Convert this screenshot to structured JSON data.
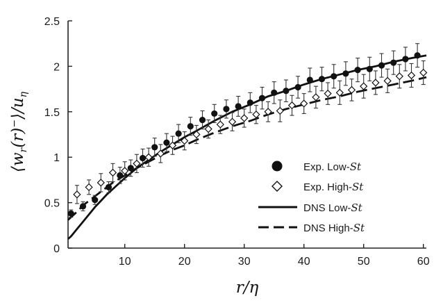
{
  "chart_data": {
    "type": "scatter",
    "xlabel": "r/η",
    "ylabel": "⟨w_r(r)⁻⟩/u_η",
    "xlim": [
      0.5,
      60.5
    ],
    "ylim": [
      0,
      2.5
    ],
    "x_ticks": [
      "10",
      "20",
      "30",
      "40",
      "50",
      "60"
    ],
    "y_ticks": [
      "0",
      "0.5",
      "1",
      "1.5",
      "2",
      "2.5"
    ],
    "grid": false,
    "legend_position": "bottom-right",
    "legend": {
      "exp_low_prefix": "Exp. Low-",
      "exp_high_prefix": "Exp. High-",
      "dns_low_prefix": "DNS Low-",
      "dns_high_prefix": "DNS High-",
      "st": "St"
    },
    "series": [
      {
        "name": "Exp. Low-St",
        "marker": "filled-circle",
        "x": [
          1,
          3,
          5,
          7.3,
          9.2,
          11,
          13,
          15,
          17,
          19,
          21,
          23,
          25,
          27,
          29,
          31,
          33,
          35,
          37,
          39,
          41,
          43,
          45,
          47,
          49,
          51,
          53,
          55,
          57,
          59
        ],
        "y": [
          0.38,
          0.46,
          0.53,
          0.67,
          0.8,
          0.88,
          0.99,
          1.11,
          1.16,
          1.26,
          1.34,
          1.41,
          1.48,
          1.53,
          1.56,
          1.6,
          1.65,
          1.71,
          1.73,
          1.77,
          1.85,
          1.86,
          1.89,
          1.92,
          1.96,
          1.97,
          2.01,
          2.04,
          2.08,
          2.12
        ],
        "err": [
          0.04,
          0.05,
          0.05,
          0.06,
          0.09,
          0.09,
          0.1,
          0.1,
          0.1,
          0.1,
          0.1,
          0.1,
          0.1,
          0.1,
          0.11,
          0.11,
          0.12,
          0.12,
          0.12,
          0.12,
          0.13,
          0.13,
          0.13,
          0.13,
          0.13,
          0.13,
          0.13,
          0.13,
          0.13,
          0.13
        ]
      },
      {
        "name": "Exp. High-St",
        "marker": "open-diamond",
        "x": [
          2,
          4,
          6,
          8,
          10,
          12,
          14,
          16,
          18,
          20,
          22,
          24,
          26,
          28,
          30,
          32,
          34,
          36,
          38,
          40,
          42,
          44,
          46,
          48,
          50,
          52,
          54,
          56,
          58,
          60
        ],
        "y": [
          0.59,
          0.67,
          0.72,
          0.83,
          0.85,
          0.93,
          1.0,
          1.04,
          1.13,
          1.18,
          1.25,
          1.31,
          1.36,
          1.39,
          1.43,
          1.47,
          1.5,
          1.51,
          1.57,
          1.59,
          1.66,
          1.7,
          1.71,
          1.74,
          1.78,
          1.82,
          1.84,
          1.89,
          1.9,
          1.93
        ],
        "err": [
          0.1,
          0.08,
          0.1,
          0.1,
          0.1,
          0.1,
          0.1,
          0.1,
          0.1,
          0.1,
          0.1,
          0.1,
          0.1,
          0.1,
          0.1,
          0.1,
          0.11,
          0.12,
          0.11,
          0.11,
          0.12,
          0.12,
          0.13,
          0.12,
          0.13,
          0.13,
          0.13,
          0.13,
          0.13,
          0.13
        ]
      },
      {
        "name": "DNS Low-St",
        "style": "solid",
        "x": [
          0.5,
          1,
          2,
          3,
          4,
          5,
          6,
          7,
          8,
          9,
          10,
          12,
          14,
          16,
          18,
          20,
          22,
          25,
          28,
          31,
          34,
          37,
          40,
          43,
          46,
          49,
          52,
          55,
          58,
          60.5
        ],
        "y": [
          0.1,
          0.13,
          0.21,
          0.29,
          0.37,
          0.45,
          0.52,
          0.59,
          0.65,
          0.71,
          0.77,
          0.88,
          0.97,
          1.06,
          1.14,
          1.22,
          1.29,
          1.4,
          1.5,
          1.58,
          1.67,
          1.73,
          1.8,
          1.86,
          1.91,
          1.96,
          2.0,
          2.05,
          2.09,
          2.12
        ]
      },
      {
        "name": "DNS High-St",
        "style": "dashed",
        "x": [
          0.5,
          1,
          2,
          3,
          4,
          5,
          6,
          7,
          8,
          9,
          10,
          12,
          14,
          16,
          18,
          20,
          22,
          25,
          28,
          31,
          34,
          37,
          40,
          43,
          46,
          49,
          52,
          55,
          58,
          60.5
        ],
        "y": [
          0.31,
          0.34,
          0.4,
          0.47,
          0.52,
          0.57,
          0.62,
          0.67,
          0.72,
          0.76,
          0.8,
          0.88,
          0.95,
          1.02,
          1.08,
          1.13,
          1.19,
          1.27,
          1.34,
          1.4,
          1.47,
          1.53,
          1.58,
          1.63,
          1.67,
          1.72,
          1.76,
          1.8,
          1.84,
          1.88
        ]
      }
    ]
  }
}
